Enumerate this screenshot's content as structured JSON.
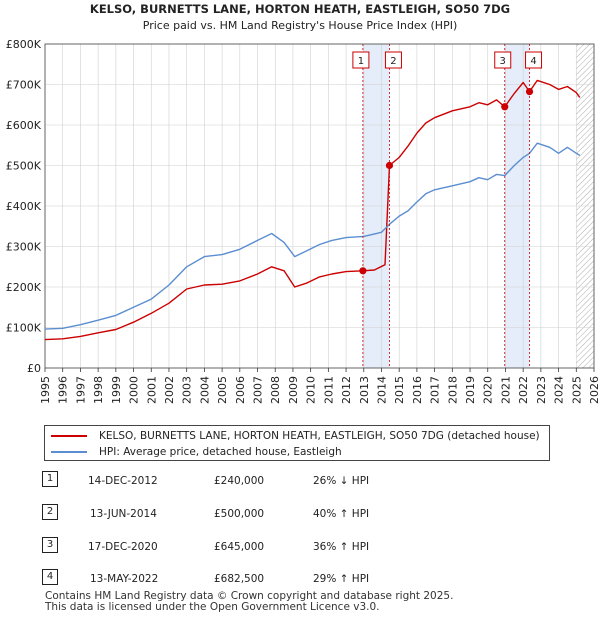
{
  "chart_data": {
    "type": "line",
    "title": "KELSO, BURNETTS LANE, HORTON HEATH, EASTLEIGH, SO50 7DG",
    "subtitle": "Price paid vs. HM Land Registry's House Price Index (HPI)",
    "xlim": [
      1995,
      2026
    ],
    "ylim": [
      0,
      800000
    ],
    "x_ticks": [
      "1995",
      "1996",
      "1997",
      "1998",
      "1999",
      "2000",
      "2001",
      "2002",
      "2003",
      "2004",
      "2005",
      "2006",
      "2007",
      "2008",
      "2009",
      "2010",
      "2011",
      "2012",
      "2013",
      "2014",
      "2015",
      "2016",
      "2017",
      "2018",
      "2019",
      "2020",
      "2021",
      "2022",
      "2023",
      "2024",
      "2025",
      "2026"
    ],
    "y_ticks": [
      {
        "value": 0,
        "label": "£0"
      },
      {
        "value": 100000,
        "label": "£100K"
      },
      {
        "value": 200000,
        "label": "£200K"
      },
      {
        "value": 300000,
        "label": "£300K"
      },
      {
        "value": 400000,
        "label": "£400K"
      },
      {
        "value": 500000,
        "label": "£500K"
      },
      {
        "value": 600000,
        "label": "£600K"
      },
      {
        "value": 700000,
        "label": "£700K"
      },
      {
        "value": 800000,
        "label": "£800K"
      }
    ],
    "grid": true,
    "future_hatch_from": 2025.0,
    "shaded_spans": [
      [
        2012.95,
        2014.45
      ],
      [
        2020.96,
        2022.36
      ]
    ],
    "series": [
      {
        "name": "KELSO, BURNETTS LANE, HORTON HEATH, EASTLEIGH, SO50 7DG (detached house)",
        "color": "#cc0000",
        "points": [
          [
            1995.0,
            70000
          ],
          [
            1996.0,
            72000
          ],
          [
            1997.0,
            78000
          ],
          [
            1998.0,
            87000
          ],
          [
            1999.0,
            95000
          ],
          [
            2000.0,
            113000
          ],
          [
            2001.0,
            135000
          ],
          [
            2002.0,
            160000
          ],
          [
            2003.0,
            195000
          ],
          [
            2004.0,
            205000
          ],
          [
            2005.0,
            207000
          ],
          [
            2006.0,
            215000
          ],
          [
            2007.0,
            232000
          ],
          [
            2007.8,
            250000
          ],
          [
            2008.5,
            240000
          ],
          [
            2009.1,
            200000
          ],
          [
            2009.8,
            210000
          ],
          [
            2010.5,
            225000
          ],
          [
            2011.2,
            232000
          ],
          [
            2012.0,
            238000
          ],
          [
            2012.95,
            240000
          ],
          [
            2013.6,
            242000
          ],
          [
            2014.2,
            255000
          ],
          [
            2014.45,
            500000
          ],
          [
            2015.0,
            520000
          ],
          [
            2015.5,
            548000
          ],
          [
            2016.0,
            580000
          ],
          [
            2016.5,
            605000
          ],
          [
            2017.0,
            618000
          ],
          [
            2018.0,
            635000
          ],
          [
            2019.0,
            645000
          ],
          [
            2019.5,
            655000
          ],
          [
            2020.0,
            650000
          ],
          [
            2020.5,
            662000
          ],
          [
            2020.96,
            645000
          ],
          [
            2021.5,
            678000
          ],
          [
            2022.0,
            705000
          ],
          [
            2022.36,
            682500
          ],
          [
            2022.8,
            710000
          ],
          [
            2023.5,
            700000
          ],
          [
            2024.0,
            688000
          ],
          [
            2024.5,
            695000
          ],
          [
            2025.0,
            680000
          ],
          [
            2025.2,
            668000
          ]
        ]
      },
      {
        "name": "HPI: Average price, detached house, Eastleigh",
        "color": "#5b8ed0",
        "points": [
          [
            1995.0,
            96000
          ],
          [
            1996.0,
            98000
          ],
          [
            1997.0,
            107000
          ],
          [
            1998.0,
            118000
          ],
          [
            1999.0,
            130000
          ],
          [
            2000.0,
            150000
          ],
          [
            2001.0,
            170000
          ],
          [
            2002.0,
            205000
          ],
          [
            2003.0,
            250000
          ],
          [
            2004.0,
            275000
          ],
          [
            2005.0,
            280000
          ],
          [
            2006.0,
            293000
          ],
          [
            2007.0,
            315000
          ],
          [
            2007.8,
            332000
          ],
          [
            2008.5,
            310000
          ],
          [
            2009.1,
            275000
          ],
          [
            2009.8,
            290000
          ],
          [
            2010.5,
            305000
          ],
          [
            2011.2,
            315000
          ],
          [
            2012.0,
            322000
          ],
          [
            2013.0,
            325000
          ],
          [
            2014.0,
            335000
          ],
          [
            2014.45,
            355000
          ],
          [
            2015.0,
            375000
          ],
          [
            2015.5,
            388000
          ],
          [
            2016.0,
            410000
          ],
          [
            2016.5,
            430000
          ],
          [
            2017.0,
            440000
          ],
          [
            2018.0,
            450000
          ],
          [
            2019.0,
            460000
          ],
          [
            2019.5,
            470000
          ],
          [
            2020.0,
            465000
          ],
          [
            2020.5,
            478000
          ],
          [
            2020.96,
            475000
          ],
          [
            2021.5,
            500000
          ],
          [
            2022.0,
            520000
          ],
          [
            2022.36,
            530000
          ],
          [
            2022.8,
            555000
          ],
          [
            2023.5,
            545000
          ],
          [
            2024.0,
            530000
          ],
          [
            2024.5,
            545000
          ],
          [
            2025.0,
            530000
          ],
          [
            2025.2,
            525000
          ]
        ]
      }
    ],
    "sale_markers": [
      {
        "label": "1",
        "x": 2012.95,
        "price": 240000
      },
      {
        "label": "2",
        "x": 2014.45,
        "price": 500000
      },
      {
        "label": "3",
        "x": 2020.96,
        "price": 645000
      },
      {
        "label": "4",
        "x": 2022.36,
        "price": 682500
      }
    ]
  },
  "legend": {
    "property_label": "KELSO, BURNETTS LANE, HORTON HEATH, EASTLEIGH, SO50 7DG (detached house)",
    "hpi_label": "HPI: Average price, detached house, Eastleigh"
  },
  "sales": [
    {
      "num": "1",
      "date": "14-DEC-2012",
      "price": "£240,000",
      "hpi": "26% ↓ HPI"
    },
    {
      "num": "2",
      "date": "13-JUN-2014",
      "price": "£500,000",
      "hpi": "40% ↑ HPI"
    },
    {
      "num": "3",
      "date": "17-DEC-2020",
      "price": "£645,000",
      "hpi": "36% ↑ HPI"
    },
    {
      "num": "4",
      "date": "13-MAY-2022",
      "price": "£682,500",
      "hpi": "29% ↑ HPI"
    }
  ],
  "footer": {
    "line1": "Contains HM Land Registry data © Crown copyright and database right 2025.",
    "line2": "This data is licensed under the Open Government Licence v3.0."
  },
  "colors": {
    "property": "#cc0000",
    "hpi": "#5b8ed0",
    "shade": "#dde8f7",
    "grid": "#d0d0d0"
  }
}
